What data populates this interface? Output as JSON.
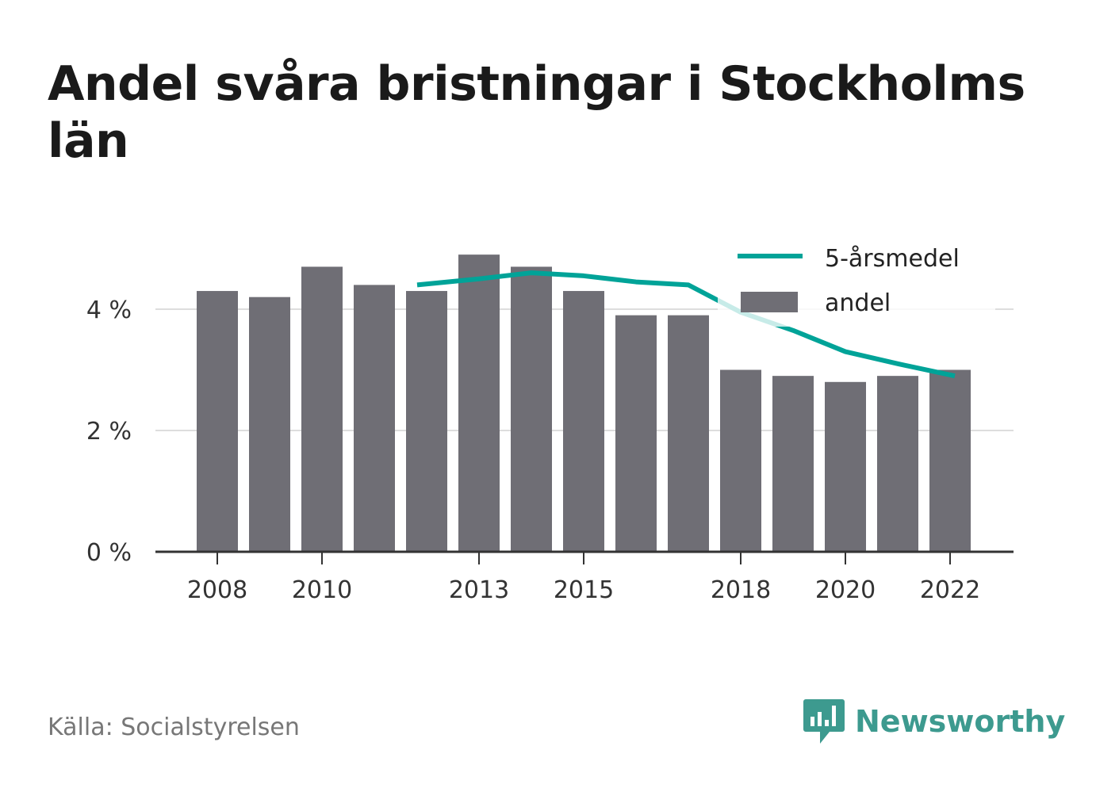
{
  "title": "Andel svåra bristningar i Stockholms län",
  "source": "Källa: Socialstyrelsen",
  "brand": "Newsworthy",
  "colors": {
    "bar": "#6f6e75",
    "line": "#00a398",
    "grid": "#dddddd",
    "axis": "#333333",
    "brand": "#3d9a8f"
  },
  "chart_data": {
    "type": "bar",
    "x": [
      2008,
      2009,
      2010,
      2011,
      2012,
      2013,
      2014,
      2015,
      2016,
      2017,
      2018,
      2019,
      2020,
      2021,
      2022
    ],
    "x_tick_labels": [
      "2008",
      "2010",
      "2013",
      "2015",
      "2018",
      "2020",
      "2022"
    ],
    "y_tick_labels": [
      "0 %",
      "2 %",
      "4 %"
    ],
    "y_ticks": [
      0,
      2,
      4
    ],
    "ylim": [
      0,
      5
    ],
    "grid": true,
    "legend_position": "top-right",
    "series": [
      {
        "name": "andel",
        "type": "bar",
        "values": [
          4.3,
          4.2,
          4.7,
          4.4,
          4.3,
          4.9,
          4.7,
          4.3,
          3.9,
          3.9,
          3.0,
          2.9,
          2.8,
          2.9,
          3.0
        ]
      },
      {
        "name": "5-årsmedel",
        "type": "line",
        "values": [
          null,
          null,
          null,
          null,
          4.4,
          4.5,
          4.6,
          4.55,
          4.45,
          4.4,
          3.95,
          3.65,
          3.3,
          3.1,
          2.9
        ]
      }
    ]
  }
}
